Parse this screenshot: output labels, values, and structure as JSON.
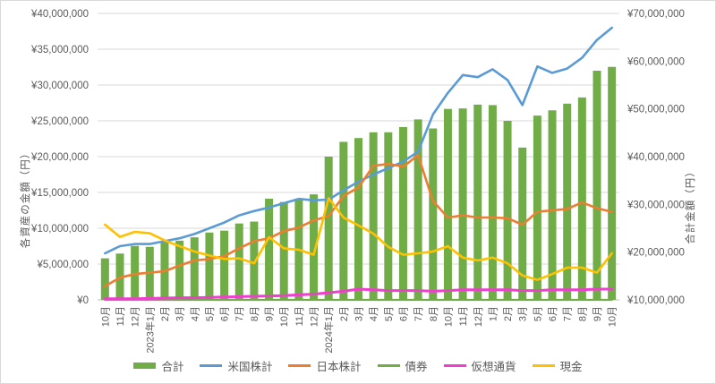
{
  "chart_data": {
    "type": "combo-bar-line",
    "unit": "millions of yen (values_m = value × ¥1,000,000)",
    "categories": [
      "10月",
      "11月",
      "12月",
      "2023年1月",
      "2月",
      "3月",
      "4月",
      "5月",
      "6月",
      "7月",
      "8月",
      "9月",
      "10月",
      "11月",
      "12月",
      "2024年1月",
      "2月",
      "3月",
      "4月",
      "5月",
      "6月",
      "7月",
      "8月",
      "10月",
      "11月",
      "12月",
      "1月",
      "2月",
      "3月",
      "5月",
      "6月",
      "7月",
      "8月",
      "9月",
      "10月"
    ],
    "bar_series": {
      "name": "合計",
      "axis": "right",
      "color": "#70AD47",
      "values_m": [
        18.7,
        19.7,
        21.3,
        21.1,
        22.1,
        22.4,
        23.1,
        24.1,
        24.5,
        26.0,
        26.4,
        31.2,
        30.5,
        31.2,
        32.1,
        40.0,
        43.1,
        43.9,
        45.1,
        45.1,
        46.2,
        47.8,
        45.9,
        50.0,
        50.1,
        50.9,
        50.8,
        47.5,
        41.9,
        48.6,
        49.7,
        51.1,
        52.4,
        58.0,
        58.8
      ]
    },
    "line_series": [
      {
        "name": "米国株計",
        "axis": "left",
        "color": "#5B9BD5",
        "width": 2.6,
        "values_m": [
          6.5,
          7.5,
          7.8,
          7.8,
          8.2,
          8.6,
          9.2,
          10.0,
          10.8,
          11.8,
          12.4,
          12.9,
          13.5,
          14.1,
          13.9,
          14.0,
          15.3,
          16.5,
          17.5,
          18.4,
          19.3,
          20.7,
          25.9,
          28.9,
          31.4,
          31.1,
          32.2,
          30.7,
          27.2,
          32.6,
          31.7,
          32.3,
          33.8,
          36.3,
          38.0
        ]
      },
      {
        "name": "日本株計",
        "axis": "left",
        "color": "#ED7D31",
        "width": 2.6,
        "values_m": [
          1.9,
          3.1,
          3.6,
          3.8,
          4.0,
          4.8,
          5.5,
          5.7,
          6.1,
          7.2,
          8.2,
          8.6,
          9.6,
          10.1,
          11.1,
          11.7,
          14.5,
          15.7,
          18.7,
          19.0,
          18.6,
          20.2,
          13.8,
          11.5,
          11.8,
          11.5,
          11.5,
          11.4,
          10.5,
          12.3,
          12.5,
          12.7,
          13.6,
          12.8,
          12.3
        ]
      },
      {
        "name": "債券",
        "axis": "left",
        "color": "#70AD47",
        "width": 2.2,
        "values_m": [
          0,
          0,
          0,
          0,
          0,
          0,
          0,
          0,
          0,
          0,
          0,
          0,
          0,
          0,
          0,
          0,
          0,
          0,
          0,
          0,
          0,
          0,
          0,
          0,
          0,
          0,
          0,
          0,
          0,
          0,
          0,
          0,
          0,
          0,
          0
        ]
      },
      {
        "name": "仮想通貨",
        "axis": "left",
        "color": "#EE3FCD",
        "width": 3,
        "values_m": [
          0.15,
          0.15,
          0.15,
          0.2,
          0.25,
          0.3,
          0.3,
          0.35,
          0.4,
          0.45,
          0.5,
          0.55,
          0.6,
          0.7,
          0.8,
          1.0,
          1.2,
          1.5,
          1.4,
          1.3,
          1.3,
          1.3,
          1.2,
          1.3,
          1.4,
          1.4,
          1.4,
          1.4,
          1.3,
          1.3,
          1.4,
          1.4,
          1.4,
          1.5,
          1.5
        ]
      },
      {
        "name": "現金",
        "axis": "left",
        "color": "#FFC000",
        "width": 2.6,
        "values_m": [
          10.5,
          8.8,
          9.5,
          9.3,
          8.3,
          7.5,
          6.75,
          6.2,
          5.7,
          5.8,
          5.1,
          8.75,
          7.2,
          7.0,
          6.3,
          14.2,
          11.5,
          10.4,
          9.25,
          7.4,
          6.3,
          6.5,
          6.75,
          7.5,
          5.9,
          5.5,
          5.9,
          5.1,
          3.4,
          2.8,
          3.6,
          4.5,
          4.5,
          3.8,
          6.5
        ]
      }
    ],
    "left_axis": {
      "title": "各資産の金額（円）",
      "min_m": 0,
      "max_m": 40,
      "step_m": 5,
      "tick_labels": [
        "¥40,000,000",
        "¥35,000,000",
        "¥30,000,000",
        "¥25,000,000",
        "¥20,000,000",
        "¥15,000,000",
        "¥10,000,000",
        "¥5,000,000",
        "¥0"
      ]
    },
    "right_axis": {
      "title": "合計金額（円）",
      "min_m": 10,
      "max_m": 70,
      "step_m": 10,
      "tick_labels": [
        "¥70,000,000",
        "¥60,000,000",
        "¥50,000,000",
        "¥40,000,000",
        "¥30,000,000",
        "¥20,000,000",
        "¥10,000,000"
      ]
    },
    "style": {
      "grid_color": "#d9d9d9",
      "axis_line_color": "#bfbfbf",
      "tick_text_color": "#595959",
      "background": "#ffffff"
    },
    "legend_position": "bottom"
  }
}
